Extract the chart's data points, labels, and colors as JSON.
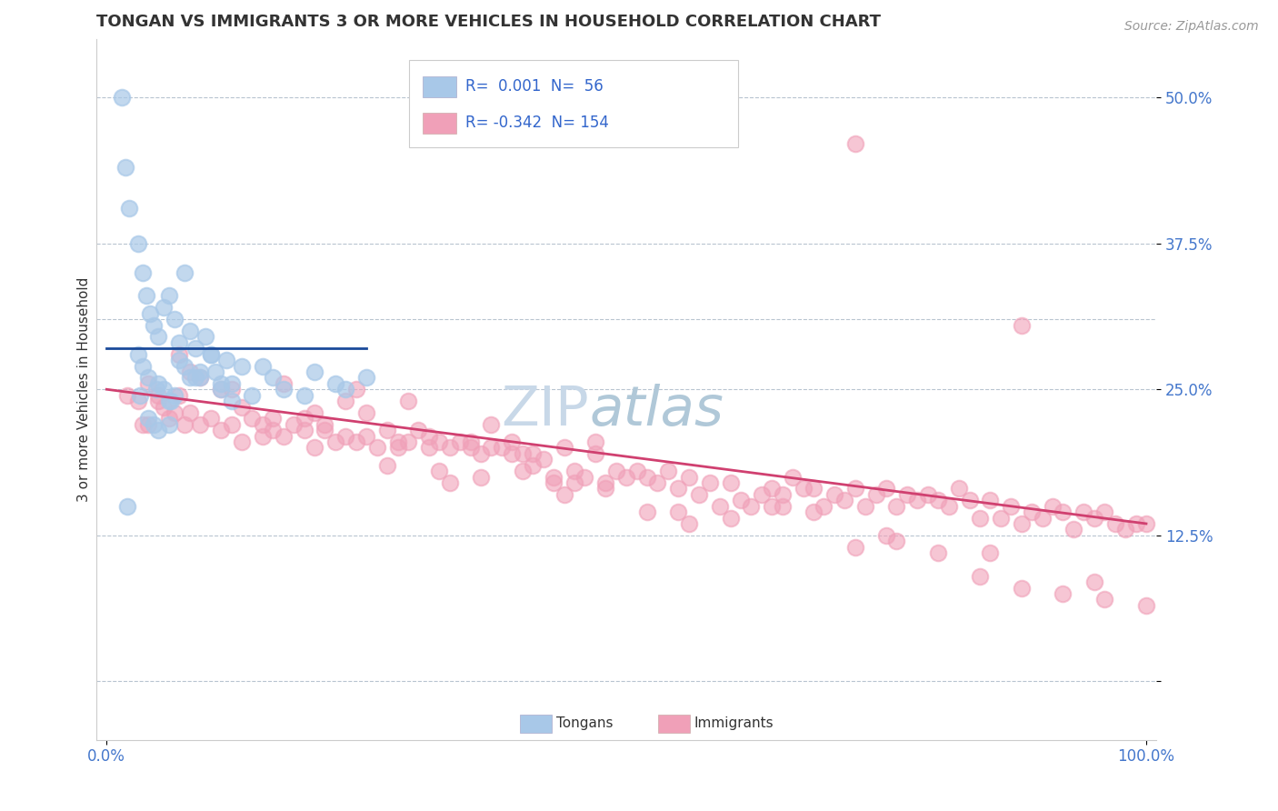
{
  "title": "TONGAN VS IMMIGRANTS 3 OR MORE VEHICLES IN HOUSEHOLD CORRELATION CHART",
  "source": "Source: ZipAtlas.com",
  "xlabel": "",
  "ylabel": "3 or more Vehicles in Household",
  "xlim": [
    -1,
    101
  ],
  "ylim": [
    -5,
    55
  ],
  "ytick_values": [
    0,
    12.5,
    25.0,
    37.5,
    50.0
  ],
  "ytick_labels": [
    "",
    "12.5%",
    "25.0%",
    "37.5%",
    "50.0%"
  ],
  "xtick_values": [
    0,
    100
  ],
  "xtick_labels": [
    "0.0%",
    "100.0%"
  ],
  "legend_R_tongan": " 0.001",
  "legend_N_tongan": " 56",
  "legend_R_immigrant": "-0.342",
  "legend_N_immigrant": "154",
  "tongan_color": "#a8c8e8",
  "immigrant_color": "#f0a0b8",
  "tongan_line_color": "#1a4a9a",
  "immigrant_line_color": "#d04070",
  "dashed_line_color": "#b8c4d0",
  "background_color": "#ffffff",
  "watermark_text1": "ZIP",
  "watermark_text2": "atlas",
  "watermark_color": "#c8d8e8",
  "title_fontsize": 13,
  "label_fontsize": 11,
  "tick_fontsize": 12,
  "source_fontsize": 10,
  "dashed_y": 31.0,
  "tongan_trend_x0": 0,
  "tongan_trend_x1": 25,
  "tongan_trend_y0": 28.5,
  "tongan_trend_y1": 28.5,
  "immigrant_trend_x0": 0,
  "immigrant_trend_x1": 100,
  "immigrant_trend_y0": 25.0,
  "immigrant_trend_y1": 13.5,
  "tongan_x": [
    1.5,
    1.8,
    2.2,
    3.0,
    3.5,
    3.8,
    4.2,
    4.5,
    5.0,
    5.5,
    6.0,
    6.5,
    7.0,
    7.5,
    8.0,
    8.5,
    9.0,
    9.5,
    10.0,
    10.5,
    11.0,
    11.5,
    12.0,
    13.0,
    14.0,
    3.0,
    3.5,
    4.0,
    5.0,
    6.0,
    7.0,
    8.0,
    10.0,
    12.0,
    15.0,
    17.0,
    20.0,
    22.0,
    25.0,
    4.5,
    5.5,
    6.5,
    7.5,
    9.0,
    2.0,
    3.2,
    4.8,
    6.2,
    8.5,
    11.0,
    16.0,
    19.0,
    23.0,
    4.0,
    5.0,
    6.0
  ],
  "tongan_y": [
    50.0,
    44.0,
    40.5,
    37.5,
    35.0,
    33.0,
    31.5,
    30.5,
    29.5,
    32.0,
    33.0,
    31.0,
    29.0,
    35.0,
    30.0,
    28.5,
    26.0,
    29.5,
    28.0,
    26.5,
    25.0,
    27.5,
    24.0,
    27.0,
    24.5,
    28.0,
    27.0,
    26.0,
    25.5,
    24.0,
    27.5,
    26.0,
    28.0,
    25.5,
    27.0,
    25.0,
    26.5,
    25.5,
    26.0,
    22.0,
    25.0,
    24.5,
    27.0,
    26.5,
    15.0,
    24.5,
    25.0,
    24.0,
    26.0,
    25.5,
    26.0,
    24.5,
    25.0,
    22.5,
    21.5,
    22.0
  ],
  "immigrant_x": [
    2.0,
    3.0,
    4.0,
    5.0,
    5.5,
    6.0,
    6.5,
    7.0,
    7.5,
    8.0,
    9.0,
    10.0,
    11.0,
    12.0,
    13.0,
    14.0,
    15.0,
    16.0,
    17.0,
    18.0,
    19.0,
    20.0,
    21.0,
    22.0,
    23.0,
    24.0,
    25.0,
    26.0,
    27.0,
    28.0,
    29.0,
    30.0,
    31.0,
    32.0,
    33.0,
    34.0,
    35.0,
    36.0,
    37.0,
    38.0,
    39.0,
    40.0,
    41.0,
    42.0,
    43.0,
    44.0,
    45.0,
    46.0,
    47.0,
    48.0,
    49.0,
    50.0,
    51.0,
    52.0,
    53.0,
    54.0,
    55.0,
    56.0,
    57.0,
    58.0,
    59.0,
    60.0,
    61.0,
    62.0,
    63.0,
    64.0,
    65.0,
    66.0,
    67.0,
    68.0,
    69.0,
    70.0,
    71.0,
    72.0,
    73.0,
    74.0,
    75.0,
    76.0,
    77.0,
    78.0,
    79.0,
    80.0,
    81.0,
    82.0,
    83.0,
    84.0,
    85.0,
    86.0,
    87.0,
    88.0,
    89.0,
    90.0,
    91.0,
    92.0,
    93.0,
    94.0,
    95.0,
    96.0,
    97.0,
    98.0,
    99.0,
    100.0,
    3.5,
    5.0,
    7.0,
    9.0,
    11.0,
    13.0,
    15.0,
    17.0,
    19.0,
    21.0,
    23.0,
    25.0,
    27.0,
    29.0,
    31.0,
    33.0,
    35.0,
    37.0,
    39.0,
    41.0,
    43.0,
    45.0,
    47.0,
    55.0,
    65.0,
    75.0,
    85.0,
    95.0,
    4.0,
    8.0,
    12.0,
    16.0,
    20.0,
    24.0,
    28.0,
    32.0,
    36.0,
    40.0,
    44.0,
    48.0,
    52.0,
    56.0,
    60.0,
    64.0,
    68.0,
    72.0,
    76.0,
    80.0,
    84.0,
    88.0,
    92.0,
    96.0,
    100.0,
    72.0,
    88.0,
    55.0
  ],
  "immigrant_y": [
    24.5,
    24.0,
    25.5,
    24.0,
    23.5,
    22.5,
    23.0,
    24.5,
    22.0,
    23.0,
    22.0,
    22.5,
    21.5,
    22.0,
    20.5,
    22.5,
    22.0,
    21.5,
    21.0,
    22.0,
    21.5,
    20.0,
    21.5,
    20.5,
    21.0,
    20.5,
    21.0,
    20.0,
    21.5,
    20.0,
    20.5,
    21.5,
    20.0,
    20.5,
    20.0,
    20.5,
    20.0,
    19.5,
    20.0,
    20.0,
    19.5,
    18.0,
    19.5,
    19.0,
    17.0,
    20.0,
    18.0,
    17.5,
    19.5,
    16.5,
    18.0,
    17.5,
    18.0,
    17.5,
    17.0,
    18.0,
    16.5,
    17.5,
    16.0,
    17.0,
    15.0,
    17.0,
    15.5,
    15.0,
    16.0,
    16.5,
    16.0,
    17.5,
    16.5,
    16.5,
    15.0,
    16.0,
    15.5,
    16.5,
    15.0,
    16.0,
    16.5,
    15.0,
    16.0,
    15.5,
    16.0,
    15.5,
    15.0,
    16.5,
    15.5,
    14.0,
    15.5,
    14.0,
    15.0,
    13.5,
    14.5,
    14.0,
    15.0,
    14.5,
    13.0,
    14.5,
    14.0,
    14.5,
    13.5,
    13.0,
    13.5,
    13.5,
    22.0,
    24.5,
    28.0,
    26.0,
    25.0,
    23.5,
    21.0,
    25.5,
    22.5,
    22.0,
    24.0,
    23.0,
    18.5,
    24.0,
    21.0,
    17.0,
    20.5,
    22.0,
    20.5,
    18.5,
    17.5,
    17.0,
    20.5,
    14.5,
    15.0,
    12.5,
    11.0,
    8.5,
    22.0,
    26.5,
    25.0,
    22.5,
    23.0,
    25.0,
    20.5,
    18.0,
    17.5,
    19.5,
    16.0,
    17.0,
    14.5,
    13.5,
    14.0,
    15.0,
    14.5,
    11.5,
    12.0,
    11.0,
    9.0,
    8.0,
    7.5,
    7.0,
    6.5,
    46.0,
    30.5,
    46.5
  ]
}
